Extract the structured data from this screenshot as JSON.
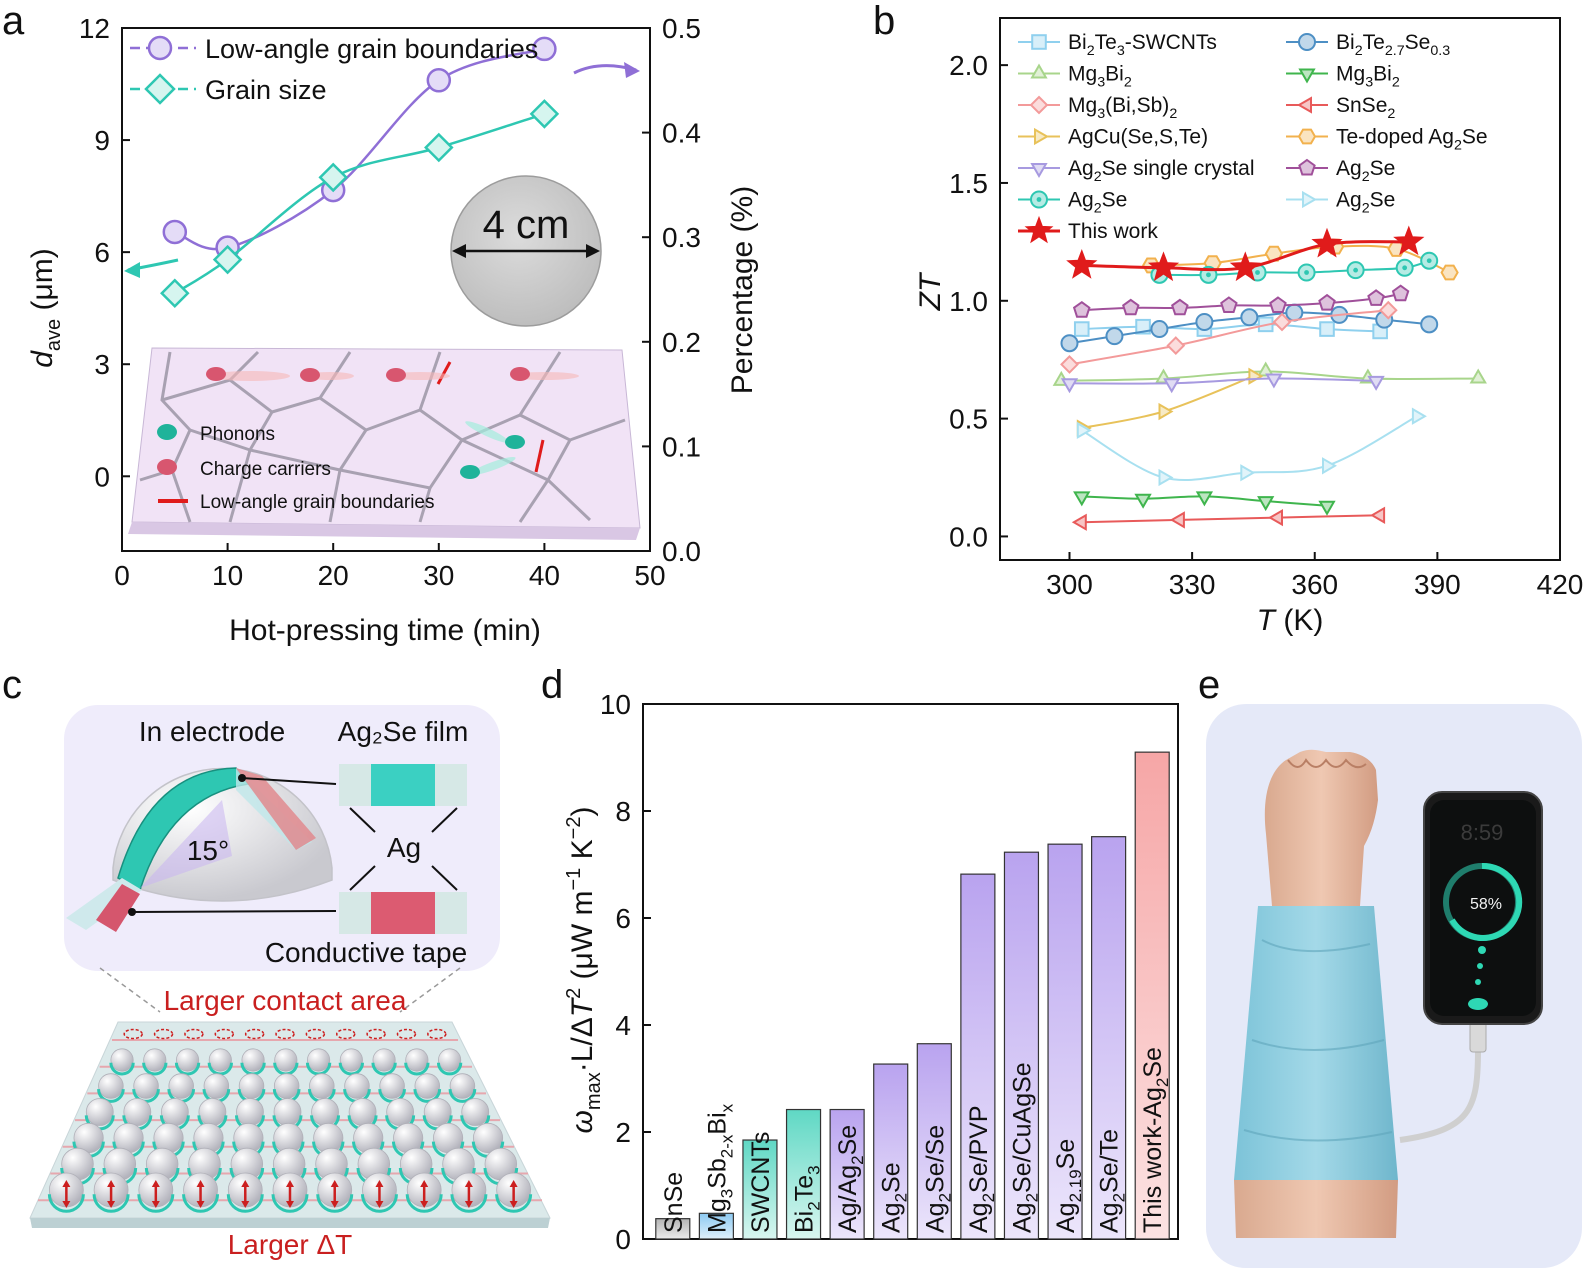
{
  "panels": {
    "a": "a",
    "b": "b",
    "c": "c",
    "d": "d",
    "e": "e"
  },
  "colors": {
    "lagb": "#8f6fd6",
    "grain": "#2ec7b2",
    "this_work": "#e01b1b",
    "bar_purple": "#c4b3f2",
    "bar_pink": "#f7b2b2",
    "bar_teal": "#7fe0cf",
    "bar_blue": "#a8d8f5",
    "bar_gray": "#c8c8c8"
  },
  "chart_data": [
    {
      "id": "a",
      "type": "line",
      "xlabel": "Hot-pressing time (min)",
      "ylabel_left_main": "d",
      "ylabel_left_sub": "ave",
      "ylabel_left_unit": " (μm)",
      "ylabel_right": "Percentage (%)",
      "xlim": [
        0,
        50
      ],
      "ylim_left": [
        -2,
        12
      ],
      "ylim_right": [
        0,
        0.5
      ],
      "xticks": [
        0,
        10,
        20,
        30,
        40,
        50
      ],
      "yticks_left": [
        0,
        3,
        6,
        9,
        12
      ],
      "yticks_right": [
        0.0,
        0.1,
        0.2,
        0.3,
        0.4,
        0.5
      ],
      "series": [
        {
          "name": "Low-angle grain boundaries",
          "axis": "right",
          "marker": "circle",
          "color": "#8f6fd6",
          "x": [
            5,
            10,
            20,
            30,
            40
          ],
          "y": [
            0.305,
            0.29,
            0.345,
            0.45,
            0.48
          ]
        },
        {
          "name": "Grain size",
          "axis": "left",
          "marker": "diamond",
          "color": "#2ec7b2",
          "x": [
            5,
            10,
            20,
            30,
            40
          ],
          "y": [
            4.9,
            5.8,
            8.0,
            8.8,
            9.7
          ]
        }
      ],
      "inset_disk_label": "4 cm",
      "inset_legend": [
        "Phonons",
        "Charge carriers",
        "Low-angle grain boundaries"
      ]
    },
    {
      "id": "b",
      "type": "line",
      "xlabel_main": "T",
      "xlabel_unit": " (K)",
      "ylabel": "ZT",
      "xlim": [
        283,
        420
      ],
      "ylim": [
        -0.1,
        2.2
      ],
      "xticks": [
        300,
        330,
        360,
        390,
        420
      ],
      "yticks": [
        0.0,
        0.5,
        1.0,
        1.5,
        2.0
      ],
      "series": [
        {
          "name": "Bi2Te3-SWCNTs",
          "name_parts": [
            [
              "Bi",
              0
            ],
            [
              "2",
              -1
            ],
            [
              "Te",
              0
            ],
            [
              "3",
              -1
            ],
            [
              "-SWCNTs",
              0
            ]
          ],
          "marker": "square",
          "color": "#8fd0ee",
          "x": [
            303,
            318,
            333,
            348,
            363,
            376
          ],
          "y": [
            0.88,
            0.89,
            0.88,
            0.9,
            0.88,
            0.87
          ]
        },
        {
          "name": "Bi2Te2.7Se0.3",
          "name_parts": [
            [
              "Bi",
              0
            ],
            [
              "2",
              -1
            ],
            [
              "Te",
              0
            ],
            [
              "2.7",
              -1
            ],
            [
              "Se",
              0
            ],
            [
              "0.3",
              -1
            ]
          ],
          "marker": "circle",
          "color": "#4d8fc4",
          "x": [
            300,
            311,
            322,
            333,
            344,
            355,
            366,
            377,
            388
          ],
          "y": [
            0.82,
            0.85,
            0.88,
            0.91,
            0.93,
            0.95,
            0.94,
            0.92,
            0.9
          ]
        },
        {
          "name": "Mg3Bi2",
          "name_parts": [
            [
              "Mg",
              0
            ],
            [
              "3",
              -1
            ],
            [
              "Bi",
              0
            ],
            [
              "2",
              -1
            ]
          ],
          "marker": "tri-up",
          "color": "#a8d58b",
          "x": [
            298,
            323,
            348,
            373,
            400
          ],
          "y": [
            0.66,
            0.67,
            0.7,
            0.67,
            0.67
          ]
        },
        {
          "name": "Mg3Bi2",
          "name_parts": [
            [
              "Mg",
              0
            ],
            [
              "3",
              -1
            ],
            [
              "Bi",
              0
            ],
            [
              "2",
              -1
            ]
          ],
          "marker": "tri-down",
          "color": "#3fb54d",
          "x": [
            303,
            318,
            333,
            348,
            363
          ],
          "y": [
            0.17,
            0.16,
            0.17,
            0.15,
            0.13
          ]
        },
        {
          "name": "Mg3(Bi,Sb)2",
          "name_parts": [
            [
              "Mg",
              0
            ],
            [
              "3",
              -1
            ],
            [
              "(Bi,Sb)",
              0
            ],
            [
              "2",
              -1
            ]
          ],
          "marker": "diamond",
          "color": "#f39a9a",
          "x": [
            300,
            326,
            352,
            378
          ],
          "y": [
            0.73,
            0.81,
            0.91,
            0.96
          ]
        },
        {
          "name": "SnSe2",
          "name_parts": [
            [
              "SnSe",
              0
            ],
            [
              "2",
              -1
            ]
          ],
          "marker": "tri-left",
          "color": "#e85a5a",
          "x": [
            303,
            327,
            351,
            376
          ],
          "y": [
            0.06,
            0.07,
            0.08,
            0.09
          ]
        },
        {
          "name": "AgCu(Se,S,Te)",
          "name_parts": [
            [
              "AgCu(Se,S,Te)",
              0
            ]
          ],
          "marker": "tri-right",
          "color": "#e8c25a",
          "x": [
            303,
            323,
            345
          ],
          "y": [
            0.46,
            0.53,
            0.68
          ]
        },
        {
          "name": "Te-doped Ag2Se",
          "name_parts": [
            [
              "Te-doped Ag",
              0
            ],
            [
              "2",
              -1
            ],
            [
              "Se",
              0
            ]
          ],
          "marker": "hexagon",
          "color": "#f2b14d",
          "x": [
            320,
            335,
            350,
            365,
            380,
            393
          ],
          "y": [
            1.15,
            1.16,
            1.2,
            1.23,
            1.22,
            1.12
          ]
        },
        {
          "name": "Ag2Se single crystal",
          "name_parts": [
            [
              "Ag",
              0
            ],
            [
              "2",
              -1
            ],
            [
              "Se single crystal",
              0
            ]
          ],
          "marker": "tri-down",
          "color": "#a79ae0",
          "x": [
            300,
            325,
            350,
            375
          ],
          "y": [
            0.65,
            0.65,
            0.67,
            0.66
          ]
        },
        {
          "name": "Ag2Se",
          "name_parts": [
            [
              "Ag",
              0
            ],
            [
              "2",
              -1
            ],
            [
              "Se",
              0
            ]
          ],
          "marker": "pentagon",
          "color": "#a0509a",
          "x": [
            303,
            315,
            327,
            339,
            351,
            363,
            375,
            381
          ],
          "y": [
            0.96,
            0.97,
            0.97,
            0.98,
            0.98,
            0.99,
            1.01,
            1.03
          ]
        },
        {
          "name": "Ag2Se",
          "name_parts": [
            [
              "Ag",
              0
            ],
            [
              "2",
              -1
            ],
            [
              "Se",
              0
            ]
          ],
          "marker": "circle-dot",
          "color": "#2ec7b2",
          "x": [
            322,
            334,
            346,
            358,
            370,
            382,
            388
          ],
          "y": [
            1.11,
            1.11,
            1.12,
            1.12,
            1.13,
            1.14,
            1.17
          ]
        },
        {
          "name": "Ag2Se",
          "name_parts": [
            [
              "Ag",
              0
            ],
            [
              "2",
              -1
            ],
            [
              "Se",
              0
            ]
          ],
          "marker": "tri-right",
          "color": "#a8e0f0",
          "x": [
            303,
            323,
            343,
            363,
            385
          ],
          "y": [
            0.45,
            0.25,
            0.27,
            0.3,
            0.51
          ]
        },
        {
          "name": "This work",
          "name_parts": [
            [
              "This work",
              0
            ]
          ],
          "marker": "star",
          "color": "#e01b1b",
          "x": [
            303,
            323,
            343,
            363,
            383
          ],
          "y": [
            1.15,
            1.14,
            1.14,
            1.24,
            1.25
          ]
        }
      ]
    },
    {
      "id": "d",
      "type": "bar",
      "ylabel": "ω_max·L/ΔT² (μW m⁻¹ K⁻²)",
      "ylim": [
        0,
        10
      ],
      "yticks": [
        0,
        2,
        4,
        6,
        8,
        10
      ],
      "categories": [
        "SnSe",
        "Mg3Sb2-xBix",
        "SWCNTs",
        "Bi2Te3",
        "Ag/Ag2Se",
        "Ag2Se",
        "Ag2Se/Se",
        "Ag2Se/PVP",
        "Ag2Se/CuAgSe",
        "Ag2.19Se",
        "Ag2Se/Te",
        "This work-Ag2Se"
      ],
      "category_parts": [
        [
          [
            "SnSe",
            0
          ]
        ],
        [
          [
            "Mg",
            0
          ],
          [
            "3",
            -1
          ],
          [
            "Sb",
            0
          ],
          [
            "2-x",
            -1
          ],
          [
            "Bi",
            0
          ],
          [
            "x",
            -1
          ]
        ],
        [
          [
            "SWCNTs",
            0
          ]
        ],
        [
          [
            "Bi",
            0
          ],
          [
            "2",
            -1
          ],
          [
            "Te",
            0
          ],
          [
            "3",
            -1
          ]
        ],
        [
          [
            "Ag/Ag",
            0
          ],
          [
            "2",
            -1
          ],
          [
            "Se",
            0
          ]
        ],
        [
          [
            "Ag",
            0
          ],
          [
            "2",
            -1
          ],
          [
            "Se",
            0
          ]
        ],
        [
          [
            "Ag",
            0
          ],
          [
            "2",
            -1
          ],
          [
            "Se/Se",
            0
          ]
        ],
        [
          [
            "Ag",
            0
          ],
          [
            "2",
            -1
          ],
          [
            "Se/PVP",
            0
          ]
        ],
        [
          [
            "Ag",
            0
          ],
          [
            "2",
            -1
          ],
          [
            "Se/CuAgSe",
            0
          ]
        ],
        [
          [
            "Ag",
            0
          ],
          [
            "2.19",
            -1
          ],
          [
            "Se",
            0
          ]
        ],
        [
          [
            "Ag",
            0
          ],
          [
            "2",
            -1
          ],
          [
            "Se/Te",
            0
          ]
        ],
        [
          [
            "This work-Ag",
            0
          ],
          [
            "2",
            -1
          ],
          [
            "Se",
            0
          ]
        ]
      ],
      "values": [
        0.38,
        0.48,
        1.85,
        2.42,
        2.42,
        3.27,
        3.65,
        6.82,
        7.23,
        7.38,
        7.52,
        9.1
      ],
      "bar_colors": [
        "gray",
        "blue",
        "teal",
        "teal",
        "purple",
        "purple",
        "purple",
        "purple",
        "purple",
        "purple",
        "purple",
        "pink"
      ]
    }
  ],
  "panel_c": {
    "in_electrode": "In electrode",
    "film": "Ag₂Se film",
    "ag": "Ag",
    "angle": "15°",
    "tape": "Conductive tape",
    "contact": "Larger contact area",
    "delta_t": "Larger ΔT"
  },
  "panel_e": {
    "charge_percent": "58%",
    "clock": "8:59"
  }
}
